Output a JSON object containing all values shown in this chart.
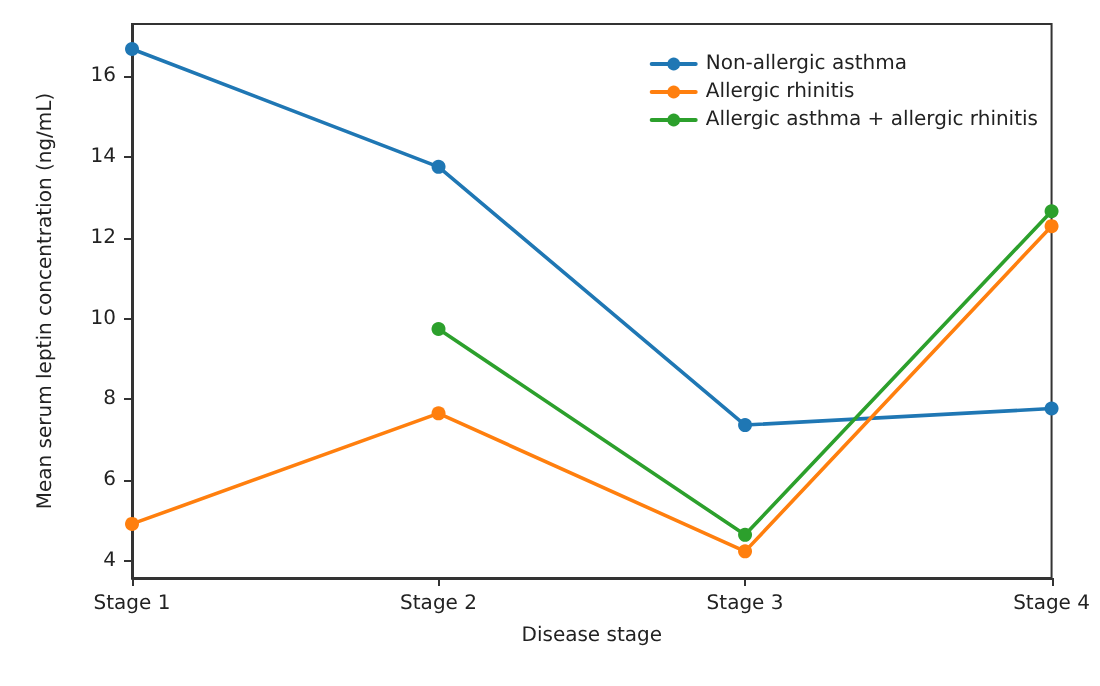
{
  "chart_data": {
    "type": "line",
    "xlabel": "Disease stage",
    "ylabel": "Mean serum leptin concentration (ng/mL)",
    "categories": [
      "Stage 1",
      "Stage 2",
      "Stage 3",
      "Stage 4"
    ],
    "series": [
      {
        "name": "Non-allergic asthma",
        "color": "#1f77b4",
        "values": [
          16.68,
          13.76,
          7.36,
          7.77
        ]
      },
      {
        "name": "Allergic rhinitis",
        "color": "#ff7f0e",
        "values": [
          4.91,
          7.65,
          4.23,
          12.29
        ]
      },
      {
        "name": "Allergic asthma + allergic rhinitis",
        "color": "#2ca02c",
        "values": [
          null,
          9.74,
          4.64,
          12.66
        ]
      }
    ],
    "ylim": [
      3.57,
      17.3
    ],
    "yticks": [
      4,
      6,
      8,
      10,
      12,
      14,
      16
    ],
    "grid": false,
    "legend": "top right",
    "marker": "circle",
    "line_style": "solid"
  }
}
